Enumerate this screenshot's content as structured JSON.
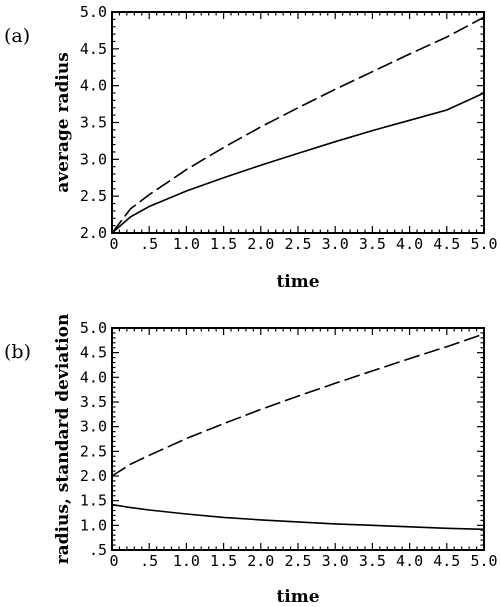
{
  "chart_data": [
    {
      "panel_label": "(a)",
      "type": "line",
      "xlabel": "time",
      "ylabel": "average radius",
      "xlim": [
        0,
        5
      ],
      "ylim": [
        2,
        5
      ],
      "x_ticks": [
        {
          "v": 0,
          "label": "0"
        },
        {
          "v": 0.5,
          "label": ".5"
        },
        {
          "v": 1.0,
          "label": "1.0"
        },
        {
          "v": 1.5,
          "label": "1.5"
        },
        {
          "v": 2.0,
          "label": "2.0"
        },
        {
          "v": 2.5,
          "label": "2.5"
        },
        {
          "v": 3.0,
          "label": "3.0"
        },
        {
          "v": 3.5,
          "label": "3.5"
        },
        {
          "v": 4.0,
          "label": "4.0"
        },
        {
          "v": 4.5,
          "label": "4.5"
        },
        {
          "v": 5.0,
          "label": "5.0"
        }
      ],
      "y_ticks": [
        {
          "v": 2.0,
          "label": "2.0"
        },
        {
          "v": 2.5,
          "label": "2.5"
        },
        {
          "v": 3.0,
          "label": "3.0"
        },
        {
          "v": 3.5,
          "label": "3.5"
        },
        {
          "v": 4.0,
          "label": "4.0"
        },
        {
          "v": 4.5,
          "label": "4.5"
        },
        {
          "v": 5.0,
          "label": "5.0"
        }
      ],
      "x": [
        0,
        0.25,
        0.5,
        1.0,
        1.5,
        2.0,
        2.5,
        3.0,
        3.5,
        4.0,
        4.5,
        5.0
      ],
      "series": [
        {
          "style": "solid",
          "values": [
            2.0,
            2.22,
            2.36,
            2.57,
            2.75,
            2.92,
            3.08,
            3.24,
            3.39,
            3.53,
            3.67,
            3.9
          ]
        },
        {
          "style": "dashed",
          "values": [
            2.0,
            2.33,
            2.52,
            2.86,
            3.16,
            3.44,
            3.7,
            3.95,
            4.19,
            4.43,
            4.66,
            4.93
          ]
        }
      ]
    },
    {
      "panel_label": "(b)",
      "type": "line",
      "xlabel": "time",
      "ylabel": "radius, standard deviation",
      "xlim": [
        0,
        5
      ],
      "ylim": [
        0.5,
        5
      ],
      "x_ticks": [
        {
          "v": 0,
          "label": "0"
        },
        {
          "v": 0.5,
          "label": ".5"
        },
        {
          "v": 1.0,
          "label": "1.0"
        },
        {
          "v": 1.5,
          "label": "1.5"
        },
        {
          "v": 2.0,
          "label": "2.0"
        },
        {
          "v": 2.5,
          "label": "2.5"
        },
        {
          "v": 3.0,
          "label": "3.0"
        },
        {
          "v": 3.5,
          "label": "3.5"
        },
        {
          "v": 4.0,
          "label": "4.0"
        },
        {
          "v": 4.5,
          "label": "4.5"
        },
        {
          "v": 5.0,
          "label": "5.0"
        }
      ],
      "y_ticks": [
        {
          "v": 0.5,
          "label": ".5"
        },
        {
          "v": 1.0,
          "label": "1.0"
        },
        {
          "v": 1.5,
          "label": "1.5"
        },
        {
          "v": 2.0,
          "label": "2.0"
        },
        {
          "v": 2.5,
          "label": "2.5"
        },
        {
          "v": 3.0,
          "label": "3.0"
        },
        {
          "v": 3.5,
          "label": "3.5"
        },
        {
          "v": 4.0,
          "label": "4.0"
        },
        {
          "v": 4.5,
          "label": "4.5"
        },
        {
          "v": 5.0,
          "label": "5.0"
        }
      ],
      "x": [
        0,
        0.25,
        0.5,
        1.0,
        1.5,
        2.0,
        2.5,
        3.0,
        3.5,
        4.0,
        4.5,
        5.0
      ],
      "series": [
        {
          "style": "solid",
          "values": [
            1.42,
            1.36,
            1.31,
            1.23,
            1.16,
            1.11,
            1.07,
            1.03,
            1.0,
            0.97,
            0.94,
            0.92
          ]
        },
        {
          "style": "dashed",
          "values": [
            2.0,
            2.24,
            2.42,
            2.76,
            3.06,
            3.35,
            3.62,
            3.88,
            4.13,
            4.38,
            4.62,
            4.88
          ]
        }
      ]
    }
  ]
}
